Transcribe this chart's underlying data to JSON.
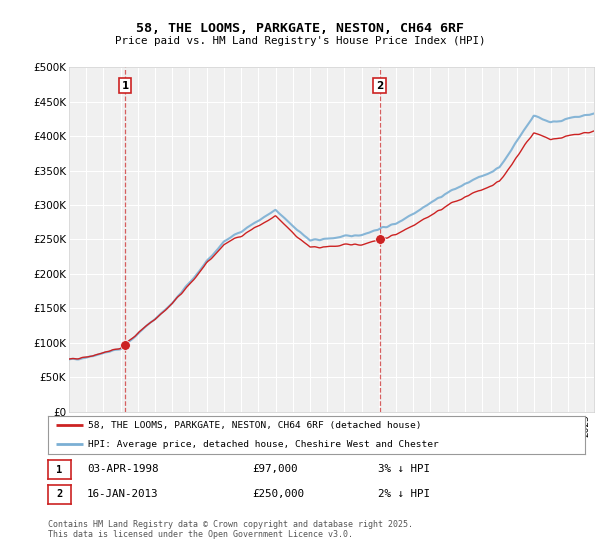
{
  "title": "58, THE LOOMS, PARKGATE, NESTON, CH64 6RF",
  "subtitle": "Price paid vs. HM Land Registry's House Price Index (HPI)",
  "ylim": [
    0,
    500000
  ],
  "yticks": [
    0,
    50000,
    100000,
    150000,
    200000,
    250000,
    300000,
    350000,
    400000,
    450000,
    500000
  ],
  "ytick_labels": [
    "£0",
    "£50K",
    "£100K",
    "£150K",
    "£200K",
    "£250K",
    "£300K",
    "£350K",
    "£400K",
    "£450K",
    "£500K"
  ],
  "hpi_color": "#7bafd4",
  "price_color": "#cc2222",
  "vline_color": "#cc2222",
  "sale1_year": 1998.25,
  "sale1_price": 97000,
  "sale1_label": "1",
  "sale1_date": "03-APR-1998",
  "sale1_amount": "£97,000",
  "sale1_pct": "3% ↓ HPI",
  "sale2_year": 2013.04,
  "sale2_price": 250000,
  "sale2_label": "2",
  "sale2_date": "16-JAN-2013",
  "sale2_amount": "£250,000",
  "sale2_pct": "2% ↓ HPI",
  "legend_line1": "58, THE LOOMS, PARKGATE, NESTON, CH64 6RF (detached house)",
  "legend_line2": "HPI: Average price, detached house, Cheshire West and Chester",
  "footer": "Contains HM Land Registry data © Crown copyright and database right 2025.\nThis data is licensed under the Open Government Licence v3.0.",
  "background_color": "#ffffff",
  "plot_bg_color": "#f0f0f0",
  "grid_color": "#ffffff",
  "year_start": 1995,
  "year_end": 2025
}
